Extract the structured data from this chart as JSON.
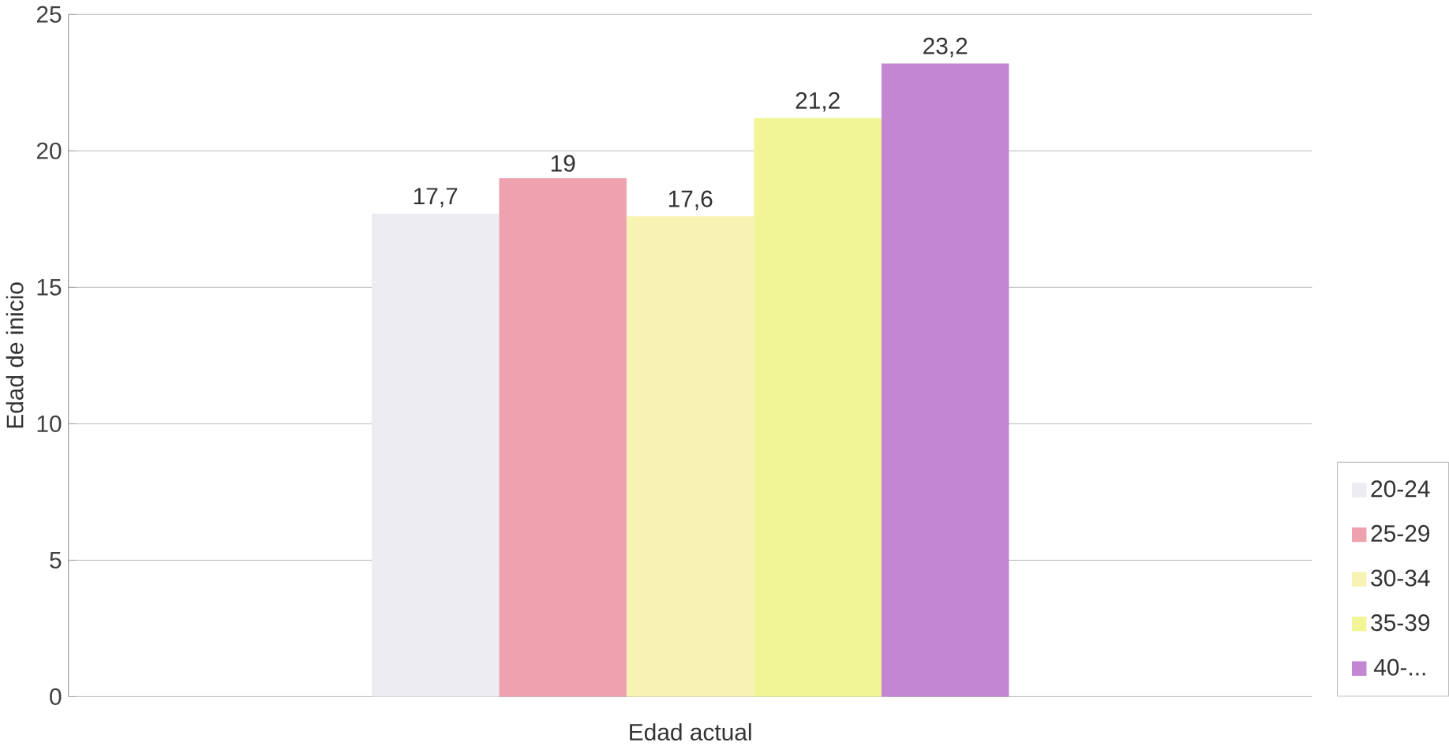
{
  "chart_data": {
    "type": "bar",
    "xlabel": "Edad actual",
    "ylabel": "Edad de inicio",
    "categories": [
      null
    ],
    "series": [
      {
        "name": "20-24",
        "color": "#ececf2",
        "values": [
          17.7
        ],
        "value_labels": [
          "17,7"
        ]
      },
      {
        "name": "25-29",
        "color": "#eea2b0",
        "values": [
          19
        ],
        "value_labels": [
          "19"
        ]
      },
      {
        "name": "30-34",
        "color": "#f7f3b2",
        "values": [
          17.6
        ],
        "value_labels": [
          "17,6"
        ]
      },
      {
        "name": "35-39",
        "color": "#f1f596",
        "values": [
          21.2
        ],
        "value_labels": [
          "21,2"
        ]
      },
      {
        "name": "40-...",
        "color": "#c386d2",
        "values": [
          23.2
        ],
        "value_labels": [
          "23,2"
        ]
      }
    ],
    "ylim": [
      0,
      25
    ],
    "yticks": [
      0,
      5,
      10,
      15,
      20,
      25
    ],
    "grid": "y",
    "legend": "right"
  }
}
